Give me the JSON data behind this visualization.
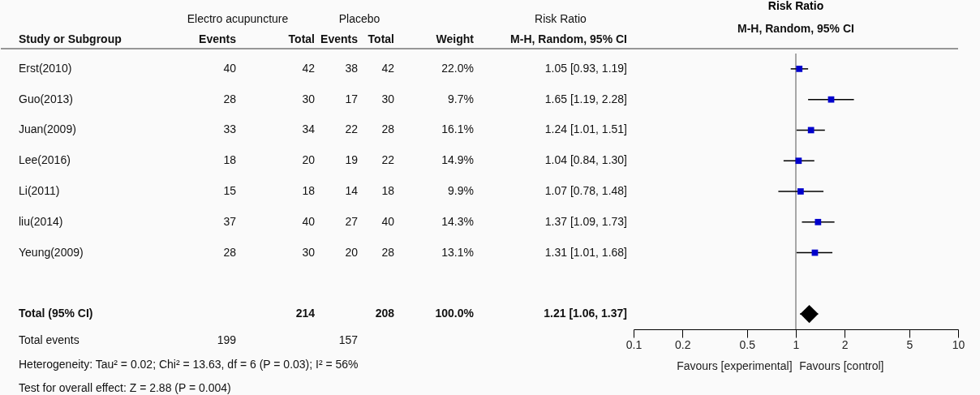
{
  "chart_data": [
    {
      "type": "other",
      "categories": [
        "Study or Subgroup",
        "Events",
        "Total",
        "Events",
        "Total",
        "Weight",
        "M-H, Random, 95% CI"
      ],
      "y_categories": [
        "Erst(2010)",
        "Guo(2013)",
        "Juan(2009)",
        "Lee(2016)",
        "Li(2011)",
        "liu(2014)",
        "Yeung(2009)",
        "Total (95% CI)",
        "Total events"
      ],
      "cell_labels": [
        [
          "40",
          "42",
          "38",
          "42",
          "22.0%",
          "1.05 [0.93, 1.19]"
        ],
        [
          "28",
          "30",
          "17",
          "30",
          "9.7%",
          "1.65 [1.19, 2.28]"
        ],
        [
          "33",
          "34",
          "22",
          "28",
          "16.1%",
          "1.24 [1.01, 1.51]"
        ],
        [
          "18",
          "20",
          "19",
          "22",
          "14.9%",
          "1.04 [0.84, 1.30]"
        ],
        [
          "15",
          "18",
          "14",
          "18",
          "9.9%",
          "1.07 [0.78, 1.48]"
        ],
        [
          "37",
          "40",
          "27",
          "40",
          "14.3%",
          "1.37 [1.09, 1.73]"
        ],
        [
          "28",
          "30",
          "20",
          "28",
          "13.1%",
          "1.31 [1.01, 1.68]"
        ],
        [
          null,
          "214",
          null,
          "208",
          "100.0%",
          "1.21 [1.06, 1.37]"
        ],
        [
          "199",
          null,
          "157",
          null,
          null,
          null
        ]
      ],
      "annotations": [
        "Electro acupuncture",
        "Placebo",
        "Risk Ratio",
        "Heterogeneity: Tau² = 0.02; Chi² = 13.63, df = 6 (P = 0.03); I² = 56%",
        "Test for overall effect: Z = 2.88 (P = 0.004)"
      ]
    },
    {
      "type": "scatter",
      "orientation": "horizontal",
      "title": "Risk Ratio",
      "subtitle": "M-H, Random, 95% CI",
      "categories": [
        null,
        null,
        null,
        null,
        null,
        null,
        null,
        null,
        null
      ],
      "series": [
        {
          "color": "#0000cc",
          "marker": "square",
          "values": [
            1.05,
            1.65,
            1.24,
            1.04,
            1.07,
            1.37,
            1.31,
            null,
            null
          ],
          "errors": [
            [
              0.93,
              1.19
            ],
            [
              1.19,
              2.28
            ],
            [
              1.01,
              1.51
            ],
            [
              0.84,
              1.3
            ],
            [
              0.78,
              1.48
            ],
            [
              1.09,
              1.73
            ],
            [
              1.01,
              1.68
            ],
            null,
            null
          ]
        },
        {
          "color": "#000000",
          "marker": "diamond",
          "values": [
            null,
            null,
            null,
            null,
            null,
            null,
            null,
            null,
            1.21
          ],
          "errors": [
            null,
            null,
            null,
            null,
            null,
            null,
            null,
            null,
            [
              1.06,
              1.37
            ]
          ]
        }
      ],
      "log": "x",
      "xlim": [
        0.1,
        10
      ],
      "xticks": [
        0.1,
        0.2,
        0.5,
        1,
        2,
        5,
        10
      ],
      "ref_lines": [
        {
          "axis": "x",
          "value": 1
        }
      ],
      "annotations": [
        "Favours [experimental]",
        "Favours [control]"
      ]
    }
  ]
}
